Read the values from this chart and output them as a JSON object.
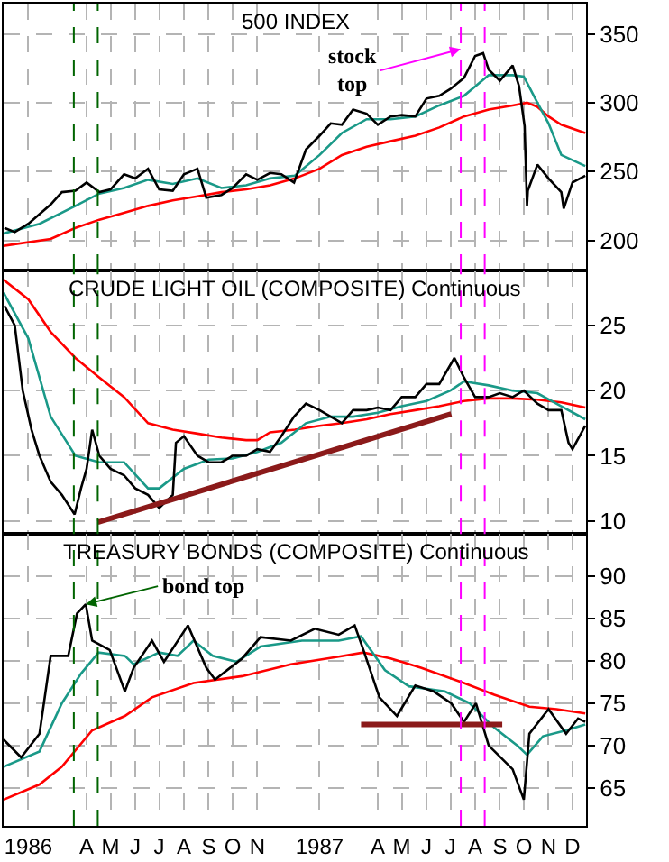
{
  "chart_data": [
    {
      "type": "line",
      "title": "500 INDEX",
      "xlim": [
        "1986-01-01",
        "1988-01-01"
      ],
      "ylim": [
        178,
        372
      ],
      "yticks": [
        200,
        250,
        300,
        350
      ],
      "grid": true,
      "tick_labels": "y",
      "marker": "none",
      "line_style": "solid",
      "series": [
        {
          "color": "#ff0000",
          "x": [
            "1986-01-01",
            "1986-03-01",
            "1986-04-01",
            "1986-05-01",
            "1986-06-01",
            "1986-07-01",
            "1986-08-01",
            "1986-09-01",
            "1986-10-01",
            "1986-11-01",
            "1986-12-01",
            "1987-01-01",
            "1987-02-01",
            "1987-03-01",
            "1987-04-01",
            "1987-05-01",
            "1987-06-01",
            "1987-07-01",
            "1987-08-01",
            "1987-09-01",
            "1987-10-01",
            "1987-10-19",
            "1987-11-01",
            "1987-11-15",
            "1987-12-01",
            "1987-12-31"
          ],
          "values": [
            196,
            201,
            209,
            215,
            220,
            225,
            229,
            232,
            235,
            237,
            240,
            245,
            252,
            262,
            268,
            272,
            276,
            282,
            290,
            295,
            298,
            300,
            297,
            290,
            284,
            278
          ]
        },
        {
          "color": "#1a9988",
          "x": [
            "1986-01-01",
            "1986-02-15",
            "1986-04-01",
            "1986-05-01",
            "1986-06-01",
            "1986-07-01",
            "1986-08-01",
            "1986-09-01",
            "1986-10-01",
            "1986-11-01",
            "1986-12-01",
            "1987-01-01",
            "1987-02-01",
            "1987-03-01",
            "1987-04-01",
            "1987-05-01",
            "1987-06-01",
            "1987-07-01",
            "1987-08-01",
            "1987-09-01",
            "1987-10-01",
            "1987-10-15",
            "1987-11-01",
            "1987-11-15",
            "1987-12-01",
            "1987-12-31"
          ],
          "values": [
            205,
            212,
            225,
            234,
            238,
            244,
            241,
            245,
            238,
            240,
            245,
            247,
            262,
            278,
            288,
            288,
            290,
            298,
            305,
            320,
            320,
            319,
            300,
            285,
            262,
            254
          ]
        },
        {
          "color": "#000000",
          "x": [
            "1986-01-02",
            "1986-01-15",
            "1986-02-01",
            "1986-02-15",
            "1986-03-01",
            "1986-03-15",
            "1986-04-01",
            "1986-04-15",
            "1986-05-01",
            "1986-05-15",
            "1986-06-01",
            "1986-06-15",
            "1986-07-01",
            "1986-07-15",
            "1986-08-01",
            "1986-08-15",
            "1986-09-01",
            "1986-09-12",
            "1986-10-01",
            "1986-10-15",
            "1986-11-01",
            "1986-11-15",
            "1986-12-01",
            "1986-12-15",
            "1986-12-31",
            "1987-01-15",
            "1987-02-01",
            "1987-02-15",
            "1987-03-01",
            "1987-03-15",
            "1987-04-01",
            "1987-04-15",
            "1987-05-01",
            "1987-05-15",
            "1987-06-01",
            "1987-06-15",
            "1987-07-01",
            "1987-07-15",
            "1987-08-01",
            "1987-08-15",
            "1987-08-25",
            "1987-09-01",
            "1987-09-15",
            "1987-10-01",
            "1987-10-09",
            "1987-10-16",
            "1987-10-19",
            "1987-10-20",
            "1987-11-01",
            "1987-11-15",
            "1987-12-01",
            "1987-12-04",
            "1987-12-15",
            "1987-12-31"
          ],
          "values": [
            209,
            206,
            212,
            219,
            226,
            235,
            236,
            242,
            235,
            237,
            248,
            245,
            252,
            237,
            236,
            248,
            252,
            231,
            233,
            238,
            248,
            244,
            249,
            248,
            242,
            266,
            276,
            285,
            284,
            295,
            292,
            284,
            290,
            291,
            290,
            303,
            305,
            310,
            318,
            334,
            336,
            324,
            316,
            327,
            312,
            283,
            225,
            236,
            255,
            245,
            235,
            223,
            242,
            247
          ]
        }
      ],
      "annotations": [
        {
          "text": "stock top",
          "x": "1987-07-28",
          "y": 339
        }
      ],
      "ref_lines": [
        {
          "axis": "x",
          "value": "1986-03-30",
          "color": "#006400",
          "line_style": "dashed"
        },
        {
          "axis": "x",
          "value": "1986-04-29",
          "color": "#006400",
          "line_style": "dashed"
        },
        {
          "axis": "x",
          "value": "1987-07-28",
          "color": "#ff00ff",
          "line_style": "dashed"
        },
        {
          "axis": "x",
          "value": "1987-08-27",
          "color": "#ff00ff",
          "line_style": "dashed"
        }
      ]
    },
    {
      "type": "line",
      "title": "CRUDE LIGHT OIL (COMPOSITE) Continuous",
      "xlim": [
        "1986-01-01",
        "1988-01-01"
      ],
      "ylim": [
        9,
        29.2
      ],
      "yticks": [
        10,
        15,
        20,
        25
      ],
      "grid": true,
      "tick_labels": "y",
      "marker": "none",
      "line_style": "solid",
      "series": [
        {
          "color": "#ff0000",
          "x": [
            "1986-01-01",
            "1986-02-01",
            "1986-03-01",
            "1986-04-01",
            "1986-05-01",
            "1986-06-01",
            "1986-07-01",
            "1986-08-01",
            "1986-09-01",
            "1986-10-01",
            "1986-11-01",
            "1986-11-15",
            "1986-12-01",
            "1987-01-01",
            "1987-02-01",
            "1987-03-01",
            "1987-04-01",
            "1987-05-01",
            "1987-06-01",
            "1987-07-01",
            "1987-08-01",
            "1987-09-01",
            "1987-10-01",
            "1987-11-01",
            "1987-12-01",
            "1987-12-31"
          ],
          "values": [
            28.5,
            27,
            24.5,
            22.5,
            21,
            19.5,
            17.5,
            17,
            16.7,
            16.4,
            16.2,
            16.2,
            16.8,
            17,
            17.3,
            17.5,
            17.8,
            18.2,
            18.5,
            18.8,
            19.2,
            19.4,
            19.4,
            19.3,
            19.1,
            18.7
          ]
        },
        {
          "color": "#1a9988",
          "x": [
            "1986-01-01",
            "1986-02-01",
            "1986-03-01",
            "1986-04-01",
            "1986-05-01",
            "1986-06-01",
            "1986-07-01",
            "1986-07-15",
            "1986-08-15",
            "1986-09-15",
            "1986-10-15",
            "1986-11-15",
            "1986-12-15",
            "1987-01-15",
            "1987-02-15",
            "1987-03-15",
            "1987-04-15",
            "1987-05-15",
            "1987-06-15",
            "1987-07-15",
            "1987-08-01",
            "1987-09-01",
            "1987-10-01",
            "1987-11-01",
            "1987-12-01",
            "1987-12-31"
          ],
          "values": [
            27.5,
            24,
            18,
            15,
            14.5,
            14.5,
            12.5,
            12.5,
            14,
            14.7,
            14.8,
            15.3,
            16,
            17.5,
            18,
            18,
            18.3,
            18.8,
            19.2,
            20,
            20.7,
            20.4,
            20,
            19.8,
            18.8,
            17.8
          ]
        },
        {
          "color": "#000000",
          "x": [
            "1986-01-02",
            "1986-01-15",
            "1986-01-25",
            "1986-02-05",
            "1986-02-15",
            "1986-03-01",
            "1986-03-15",
            "1986-03-31",
            "1986-04-08",
            "1986-04-15",
            "1986-04-22",
            "1986-05-01",
            "1986-05-15",
            "1986-06-01",
            "1986-06-15",
            "1986-07-01",
            "1986-07-15",
            "1986-08-01",
            "1986-08-05",
            "1986-08-15",
            "1986-09-01",
            "1986-09-15",
            "1986-10-01",
            "1986-10-15",
            "1986-11-01",
            "1986-11-15",
            "1986-12-01",
            "1986-12-15",
            "1986-12-31",
            "1987-01-15",
            "1987-02-01",
            "1987-02-15",
            "1987-03-01",
            "1987-03-15",
            "1987-04-01",
            "1987-04-15",
            "1987-05-01",
            "1987-05-15",
            "1987-06-01",
            "1987-06-15",
            "1987-07-01",
            "1987-07-20",
            "1987-08-01",
            "1987-08-15",
            "1987-09-01",
            "1987-09-15",
            "1987-10-01",
            "1987-10-15",
            "1987-11-01",
            "1987-11-15",
            "1987-12-01",
            "1987-12-10",
            "1987-12-15",
            "1987-12-31"
          ],
          "values": [
            26.5,
            25,
            20,
            17,
            15,
            13,
            12,
            10.5,
            12.5,
            14,
            17,
            15,
            14,
            13.5,
            12.5,
            12,
            11,
            12,
            16,
            16.5,
            15,
            14.5,
            14.5,
            15,
            15,
            15.5,
            15.3,
            16.5,
            18,
            19,
            18.5,
            18,
            17.5,
            18.5,
            18.5,
            18.7,
            18.5,
            19.5,
            19.5,
            20.5,
            20.5,
            22.5,
            21,
            19.5,
            19.5,
            19.8,
            19.5,
            20,
            19,
            18.5,
            18.5,
            16,
            15.5,
            17.3
          ]
        },
        {
          "color": "#8b1a1a",
          "x": [
            "1986-04-29",
            "1987-07-16"
          ],
          "values": [
            9.9,
            18.2
          ]
        }
      ],
      "ref_lines": [
        {
          "axis": "x",
          "value": "1986-03-30",
          "color": "#006400",
          "line_style": "dashed"
        },
        {
          "axis": "x",
          "value": "1986-04-29",
          "color": "#006400",
          "line_style": "dashed"
        },
        {
          "axis": "x",
          "value": "1987-07-28",
          "color": "#ff00ff",
          "line_style": "dashed"
        },
        {
          "axis": "x",
          "value": "1987-08-27",
          "color": "#ff00ff",
          "line_style": "dashed"
        }
      ]
    },
    {
      "type": "line",
      "title": "TREASURY BONDS (COMPOSITE) Continuous",
      "xlim": [
        "1986-01-01",
        "1988-01-01"
      ],
      "ylim": [
        60.5,
        95
      ],
      "yticks": [
        65,
        70,
        75,
        80,
        85,
        90
      ],
      "grid": true,
      "marker": "none",
      "line_style": "solid",
      "xticks": [
        {
          "value": "1986-02-01",
          "label": "1986"
        },
        {
          "value": "1986-04-15",
          "label": "A"
        },
        {
          "value": "1986-05-15",
          "label": "M"
        },
        {
          "value": "1986-06-15",
          "label": "J"
        },
        {
          "value": "1986-07-15",
          "label": "J"
        },
        {
          "value": "1986-08-15",
          "label": "A"
        },
        {
          "value": "1986-09-15",
          "label": "S"
        },
        {
          "value": "1986-10-15",
          "label": "O"
        },
        {
          "value": "1986-11-15",
          "label": "N"
        },
        {
          "value": "1987-02-01",
          "label": "1987"
        },
        {
          "value": "1987-04-15",
          "label": "A"
        },
        {
          "value": "1987-05-15",
          "label": "M"
        },
        {
          "value": "1987-06-15",
          "label": "J"
        },
        {
          "value": "1987-07-15",
          "label": "J"
        },
        {
          "value": "1987-08-15",
          "label": "A"
        },
        {
          "value": "1987-09-15",
          "label": "S"
        },
        {
          "value": "1987-10-15",
          "label": "O"
        },
        {
          "value": "1987-11-15",
          "label": "N"
        },
        {
          "value": "1987-12-15",
          "label": "D"
        }
      ],
      "series": [
        {
          "color": "#ff0000",
          "x": [
            "1986-01-01",
            "1986-02-15",
            "1986-03-15",
            "1986-04-22",
            "1986-06-02",
            "1986-07-06",
            "1986-08-27",
            "1986-10-27",
            "1986-12-27",
            "1987-02-25",
            "1987-03-28",
            "1987-05-01",
            "1987-06-08",
            "1987-08-01",
            "1987-09-08",
            "1987-10-22",
            "1987-11-25",
            "1987-12-31"
          ],
          "values": [
            63.6,
            65.4,
            67.5,
            71.8,
            73.5,
            75.7,
            77.4,
            78.2,
            79.6,
            80.5,
            81,
            80.3,
            79.2,
            77.4,
            76,
            74.6,
            74.3,
            73.8
          ]
        },
        {
          "color": "#1a9988",
          "x": [
            "1986-01-01",
            "1986-02-15",
            "1986-03-15",
            "1986-04-08",
            "1986-04-30",
            "1986-06-02",
            "1986-06-13",
            "1986-07-15",
            "1986-08-07",
            "1986-08-27",
            "1986-09-20",
            "1986-10-20",
            "1986-11-19",
            "1987-01-10",
            "1987-02-25",
            "1987-03-25",
            "1987-04-24",
            "1987-05-24",
            "1987-07-08",
            "1987-08-08",
            "1987-09-08",
            "1987-10-08",
            "1987-10-19",
            "1987-11-08",
            "1987-12-07",
            "1987-12-31"
          ],
          "values": [
            67.5,
            69.3,
            75,
            78.5,
            81,
            80.6,
            79.6,
            81,
            80.6,
            82.4,
            80.6,
            79.9,
            81.7,
            82.4,
            82.4,
            82.9,
            78.9,
            77,
            76.4,
            75,
            72.1,
            69.9,
            68.9,
            71.1,
            71.8,
            72.5
          ]
        },
        {
          "color": "#000000",
          "x": [
            "1986-01-01",
            "1986-01-23",
            "1986-02-15",
            "1986-03-01",
            "1986-03-23",
            "1986-04-03",
            "1986-04-14",
            "1986-04-22",
            "1986-05-14",
            "1986-06-02",
            "1986-06-13",
            "1986-07-06",
            "1986-07-21",
            "1986-08-20",
            "1986-09-12",
            "1986-09-23",
            "1986-10-27",
            "1986-11-19",
            "1986-12-27",
            "1987-01-26",
            "1987-02-25",
            "1987-03-17",
            "1987-03-28",
            "1987-04-17",
            "1987-05-09",
            "1987-06-01",
            "1987-06-24",
            "1987-07-16",
            "1987-08-01",
            "1987-08-16",
            "1987-09-01",
            "1987-10-01",
            "1987-10-15",
            "1987-10-22",
            "1987-11-15",
            "1987-12-07",
            "1987-12-22",
            "1987-12-31"
          ],
          "values": [
            70.7,
            68.6,
            71.4,
            80.6,
            80.6,
            85.6,
            86.7,
            82.4,
            81.3,
            76.4,
            79.2,
            82.4,
            79.9,
            84.2,
            79.2,
            77.8,
            80.3,
            82.8,
            82.4,
            83.8,
            83.1,
            84.2,
            81.3,
            75.7,
            73.5,
            77.1,
            76.4,
            75,
            72.8,
            75,
            70,
            67.2,
            63.6,
            71.4,
            74.3,
            71.4,
            73.2,
            72.8
          ]
        },
        {
          "color": "#8b1a1a",
          "x": [
            "1987-03-25",
            "1987-09-18"
          ],
          "values": [
            72.5,
            72.5
          ]
        }
      ],
      "annotations": [
        {
          "text": "bond top",
          "x": "1986-04-14",
          "y": 86.7
        }
      ],
      "ref_lines": [
        {
          "axis": "x",
          "value": "1986-03-30",
          "color": "#006400",
          "line_style": "dashed"
        },
        {
          "axis": "x",
          "value": "1986-04-29",
          "color": "#006400",
          "line_style": "dashed"
        },
        {
          "axis": "x",
          "value": "1987-07-28",
          "color": "#ff00ff",
          "line_style": "dashed"
        },
        {
          "axis": "x",
          "value": "1987-08-27",
          "color": "#ff00ff",
          "line_style": "dashed"
        }
      ]
    }
  ]
}
